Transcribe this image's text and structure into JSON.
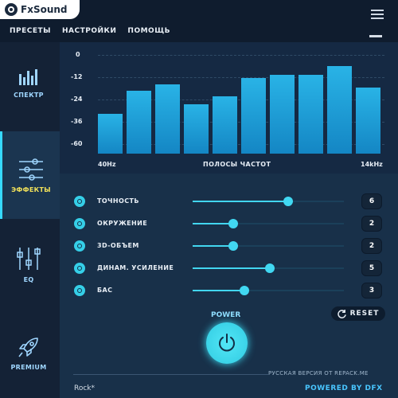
{
  "app": {
    "name": "FxSound"
  },
  "menu": {
    "items": [
      "ПРЕСЕТЫ",
      "НАСТРОЙКИ",
      "ПОМОЩЬ"
    ]
  },
  "sidebar": {
    "items": [
      {
        "label": "СПЕКТР",
        "icon": "spectrum-icon"
      },
      {
        "label": "ЭФФЕКТЫ",
        "icon": "sliders-icon",
        "active": true
      },
      {
        "label": "EQ",
        "icon": "eq-icon"
      },
      {
        "label": "PREMIUM",
        "icon": "rocket-icon"
      }
    ]
  },
  "chart_data": {
    "type": "bar",
    "yticks": [
      "0",
      "-12",
      "-24",
      "-36",
      "-60"
    ],
    "xlabel_left": "40Hz",
    "xlabel": "ПОЛОСЫ ЧАСТОТ",
    "xlabel_right": "14kHz",
    "values": [
      -36,
      -22,
      -18,
      -30,
      -25,
      -14,
      -12,
      -12,
      -7,
      -20
    ],
    "ylim": [
      -60,
      0
    ]
  },
  "effects": [
    {
      "label": "ТОЧНОСТЬ",
      "value": "6",
      "level": 0.63
    },
    {
      "label": "ОКРУЖЕНИЕ",
      "value": "2",
      "level": 0.27
    },
    {
      "label": "3D-ОБЪЕМ",
      "value": "2",
      "level": 0.27
    },
    {
      "label": "ДИНАМ. УСИЛЕНИЕ",
      "value": "5",
      "level": 0.51
    },
    {
      "label": "БАС",
      "value": "3",
      "level": 0.34
    }
  ],
  "reset": {
    "label": "RESET"
  },
  "power": {
    "label": "POWER"
  },
  "footer": {
    "repack": "РУССКАЯ ВЕРСИЯ ОТ REPACK.ME",
    "preset": "Rock*",
    "powered": "POWERED BY DFX"
  },
  "colors": {
    "accent": "#36d9ff",
    "bar": "#1b9fd8",
    "background": "#183049"
  }
}
